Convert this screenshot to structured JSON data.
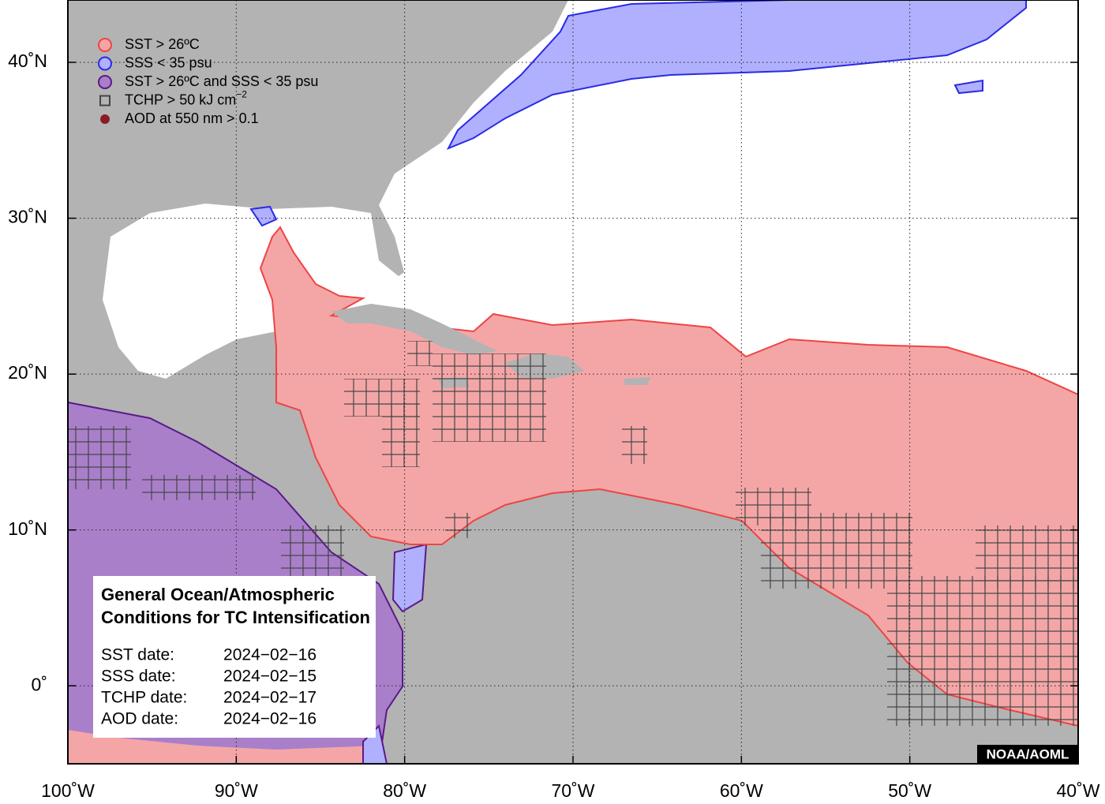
{
  "map": {
    "xlim": [
      -100,
      -40
    ],
    "ylim": [
      -5,
      44
    ],
    "x_ticks": [
      {
        "value": -100,
        "label": "100˚W"
      },
      {
        "value": -90,
        "label": "90˚W"
      },
      {
        "value": -80,
        "label": "80˚W"
      },
      {
        "value": -70,
        "label": "70˚W"
      },
      {
        "value": -60,
        "label": "60˚W"
      },
      {
        "value": -50,
        "label": "50˚W"
      },
      {
        "value": -40,
        "label": "40˚W"
      }
    ],
    "y_ticks": [
      {
        "value": 0,
        "label": "0˚"
      },
      {
        "value": 10,
        "label": "10˚N"
      },
      {
        "value": 20,
        "label": "20˚N"
      },
      {
        "value": 30,
        "label": "30˚N"
      },
      {
        "value": 40,
        "label": "40˚N"
      }
    ],
    "grid": true,
    "legend": [
      {
        "label": "SST > 26ºC",
        "marker": "circle",
        "fill": "#f4a6a6",
        "stroke": "#ee4444"
      },
      {
        "label": "SSS < 35 psu",
        "marker": "circle",
        "fill": "#b0b0ff",
        "stroke": "#2a2ae6"
      },
      {
        "label": "SST > 26ºC and SSS < 35 psu",
        "marker": "circle",
        "fill": "#a97fc9",
        "stroke": "#5a1a8a"
      },
      {
        "label": "TCHP > 50 kJ cm",
        "superscript": "−2",
        "marker": "square",
        "fill": "none",
        "stroke": "#444444"
      },
      {
        "label": "AOD at 550 nm > 0.1",
        "marker": "dot",
        "fill": "#8b1a2a",
        "stroke": "#8b1a2a"
      }
    ],
    "info": {
      "title_lines": [
        "General Ocean/Atmospheric",
        "Conditions for TC Intensification"
      ],
      "dates": [
        {
          "label": "SST date:",
          "value": "2024−02−16"
        },
        {
          "label": "SSS date:",
          "value": "2024−02−15"
        },
        {
          "label": "TCHP date:",
          "value": "2024−02−17"
        },
        {
          "label": "AOD date:",
          "value": "2024−02−16"
        }
      ]
    },
    "credit": "NOAA/AOML"
  }
}
